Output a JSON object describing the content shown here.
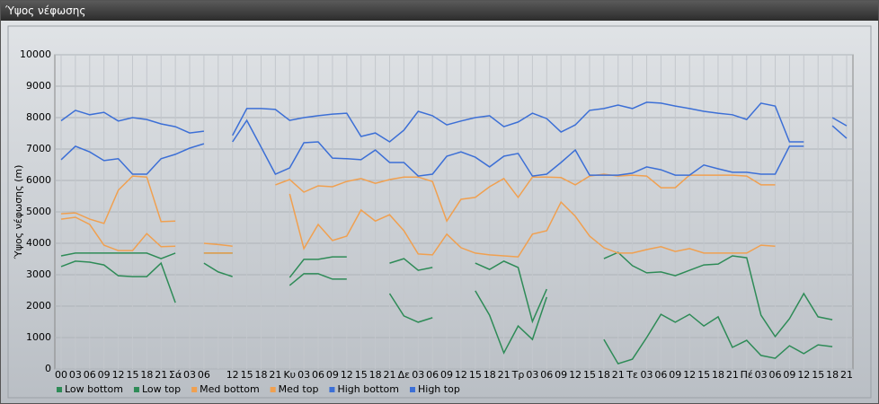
{
  "window_title": "Ύψος νέφωσης",
  "chart_data": {
    "type": "line",
    "y_label": "Ύψος νέφωσης (m)",
    "categories": [
      "00",
      "03",
      "06",
      "09",
      "12",
      "15",
      "18",
      "21",
      "Σά",
      "03",
      "06",
      null,
      "12",
      "15",
      "18",
      "21",
      "Κυ",
      "03",
      "06",
      "09",
      "12",
      "15",
      "18",
      "21",
      "Δε",
      "03",
      "06",
      "09",
      "12",
      "15",
      "18",
      "21",
      "Τρ",
      "03",
      "06",
      "09",
      "12",
      "15",
      "18",
      "21",
      "Τε",
      "03",
      "06",
      "09",
      "12",
      "15",
      "18",
      "21",
      "Πέ",
      "03",
      "06",
      "09",
      "12",
      "15",
      "18",
      "21"
    ],
    "ylim": [
      0,
      10000
    ],
    "yticks": [
      0,
      1000,
      2000,
      3000,
      4000,
      5000,
      6000,
      7000,
      8000,
      9000,
      10000
    ],
    "grid": true,
    "legend": "bottom",
    "series": [
      {
        "name": "Low bottom",
        "color": "#2e8b57",
        "values": [
          3260,
          3430,
          3400,
          3310,
          2970,
          2940,
          2940,
          3370,
          2110,
          null,
          3370,
          3090,
          2940,
          null,
          null,
          null,
          2660,
          3030,
          3030,
          2860,
          2860,
          null,
          null,
          2400,
          1690,
          1490,
          1630,
          null,
          null,
          2490,
          1710,
          510,
          1370,
          940,
          2290,
          null,
          null,
          null,
          940,
          170,
          310,
          1000,
          1740,
          1490,
          1740,
          1370,
          1660,
          690,
          910,
          430,
          340,
          740,
          490,
          770,
          710,
          null
        ]
      },
      {
        "name": "Low top",
        "color": "#2e8b57",
        "values": [
          3600,
          3690,
          3690,
          3690,
          3690,
          3690,
          3690,
          3510,
          3690,
          null,
          3690,
          3690,
          3690,
          null,
          null,
          null,
          2910,
          3490,
          3490,
          3570,
          3570,
          null,
          null,
          3370,
          3510,
          3140,
          3230,
          null,
          null,
          3370,
          3170,
          3430,
          3230,
          1510,
          2540,
          null,
          null,
          null,
          3510,
          3710,
          3290,
          3060,
          3090,
          2970,
          3140,
          3310,
          3340,
          3600,
          3540,
          1710,
          1030,
          1600,
          2400,
          1660,
          1570,
          null
        ]
      },
      {
        "name": "Med bottom",
        "color": "#f0a050",
        "values": [
          4770,
          4830,
          4600,
          3940,
          3770,
          3770,
          4310,
          3890,
          3910,
          null,
          3690,
          3690,
          3690,
          null,
          null,
          null,
          5570,
          3830,
          4600,
          4090,
          4230,
          5060,
          4710,
          4910,
          4400,
          3660,
          3630,
          4290,
          3860,
          3690,
          3630,
          3600,
          3570,
          4290,
          4400,
          5310,
          4860,
          4230,
          3860,
          3690,
          3690,
          3800,
          3890,
          3740,
          3830,
          3690,
          3690,
          3690,
          3690,
          3940,
          3910,
          null,
          null,
          null,
          null,
          null
        ]
      },
      {
        "name": "Med top",
        "color": "#f0a050",
        "values": [
          4940,
          4970,
          4770,
          4630,
          5690,
          6140,
          6110,
          4690,
          4710,
          null,
          4000,
          3960,
          3910,
          null,
          null,
          5860,
          6030,
          5630,
          5830,
          5800,
          5970,
          6060,
          5910,
          6030,
          6110,
          6110,
          5970,
          4710,
          5400,
          5460,
          5800,
          6060,
          5460,
          6110,
          6110,
          6090,
          5860,
          6140,
          6200,
          6140,
          6170,
          6140,
          5770,
          5770,
          6170,
          6170,
          6170,
          6170,
          6140,
          5860,
          5860,
          null,
          null,
          null,
          null,
          null
        ]
      },
      {
        "name": "High bottom",
        "color": "#3c6fd6",
        "values": [
          6660,
          7090,
          6910,
          6630,
          6690,
          6200,
          6200,
          6690,
          6830,
          7030,
          7170,
          null,
          7230,
          7910,
          7060,
          6200,
          6400,
          7200,
          7230,
          6710,
          6690,
          6660,
          6970,
          6570,
          6570,
          6140,
          6200,
          6770,
          6910,
          6740,
          6430,
          6770,
          6860,
          6140,
          6200,
          6570,
          6970,
          6170,
          6170,
          6170,
          6230,
          6430,
          6340,
          6170,
          6170,
          6490,
          6370,
          6260,
          6260,
          6200,
          6200,
          7090,
          7090,
          null,
          7740,
          7340
        ]
      },
      {
        "name": "High top",
        "color": "#3c6fd6",
        "values": [
          7900,
          8230,
          8090,
          8170,
          7890,
          8000,
          7940,
          7800,
          7710,
          7510,
          7570,
          null,
          7430,
          8290,
          8290,
          8260,
          7910,
          8000,
          8060,
          8110,
          8140,
          7400,
          7510,
          7230,
          7600,
          8200,
          8060,
          7770,
          7890,
          8000,
          8060,
          7710,
          7860,
          8140,
          7970,
          7540,
          7770,
          8230,
          8290,
          8400,
          8290,
          8490,
          8460,
          8370,
          8290,
          8200,
          8140,
          8090,
          7940,
          8460,
          8370,
          7230,
          7230,
          null,
          8000,
          7740
        ]
      }
    ]
  }
}
